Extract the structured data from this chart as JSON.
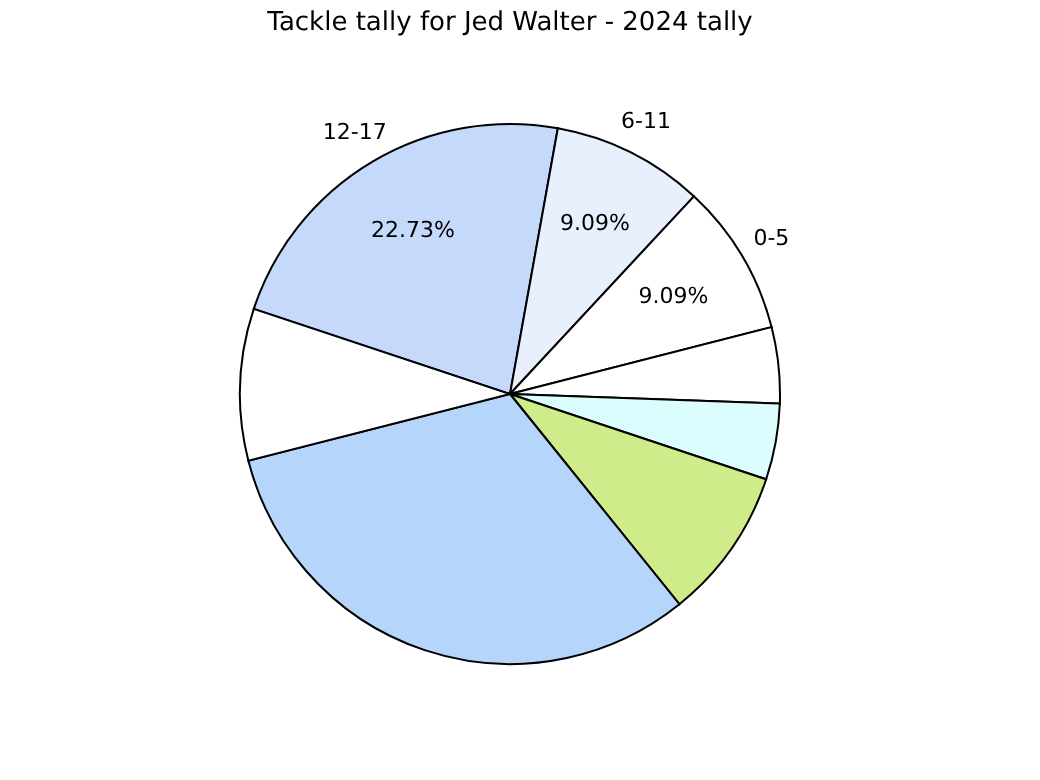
{
  "chart_data": {
    "type": "pie",
    "title": "Tackle tally for Jed Walter - 2024 tally",
    "categories": [
      "12-17",
      "6-11",
      "0-5",
      null,
      null,
      null,
      null,
      null
    ],
    "values": [
      22.73,
      9.09,
      9.09,
      4.55,
      4.55,
      9.09,
      31.82,
      9.08
    ],
    "colors": [
      "#c5d9fb",
      "#e8f0fe",
      "#ffffff",
      "#ffffff",
      "#dbfdfd",
      "#d0eb8a",
      "#b5d5fb",
      "#ffffff"
    ],
    "value_labels": [
      "22.73%",
      "9.09%",
      "9.09%",
      null,
      null,
      null,
      null,
      null
    ]
  }
}
